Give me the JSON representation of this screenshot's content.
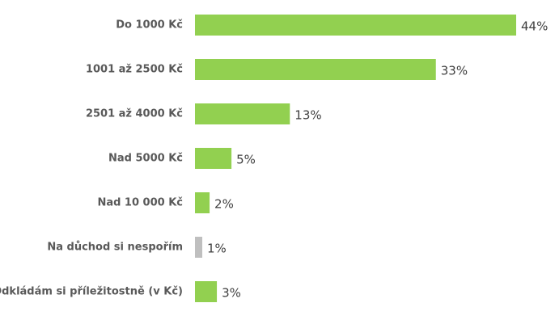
{
  "chart_data": {
    "type": "hbar",
    "categories": [
      "Do 1000 Kč",
      "1001 až 2500 Kč",
      "2501 až 4000 Kč",
      "Nad 5000 Kč",
      "Nad 10 000 Kč",
      "Na důchod si nespořím",
      "Odkládám si příležitostně (v Kč)"
    ],
    "values": [
      44,
      33,
      13,
      5,
      2,
      1,
      3
    ],
    "value_labels": [
      "44%",
      "33%",
      "13%",
      "5%",
      "2%",
      "1%",
      "3%"
    ],
    "colors": [
      "#92d050",
      "#92d050",
      "#92d050",
      "#92d050",
      "#92d050",
      "#bfbfbf",
      "#92d050"
    ]
  }
}
